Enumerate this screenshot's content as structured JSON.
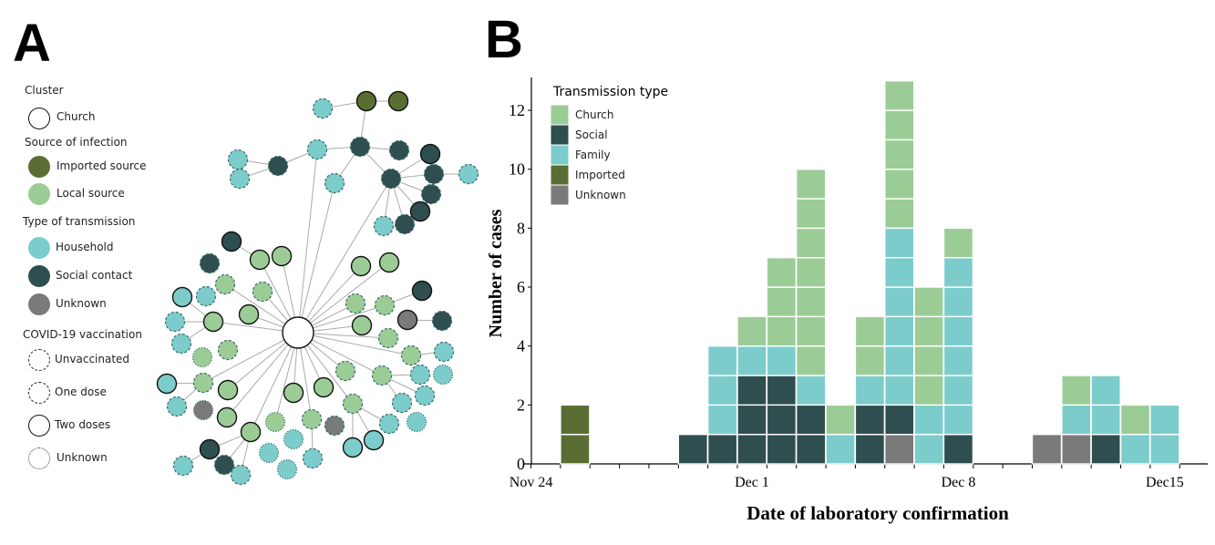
{
  "panels": {
    "a": "A",
    "b": "B"
  },
  "network_legend": {
    "cluster_heading": "Cluster",
    "cluster_items": [
      {
        "label": "Church",
        "fill": "#ffffff"
      }
    ],
    "source_heading": "Source of infection",
    "source_items": [
      {
        "label": "Imported source",
        "fill": "#5a6e34"
      },
      {
        "label": "Local source",
        "fill": "#9ccc96"
      }
    ],
    "transmission_heading": "Type of transmission",
    "transmission_items": [
      {
        "label": "Household",
        "fill": "#7ccccc"
      },
      {
        "label": "Social contact",
        "fill": "#2f4e4f"
      },
      {
        "label": "Unknown",
        "fill": "#7a7a7a"
      }
    ],
    "vaccination_heading": "COVID-19 vaccination",
    "vaccination_items": [
      {
        "label": "Unvaccinated",
        "border": "dashed"
      },
      {
        "label": "One dose",
        "border": "long-dashed"
      },
      {
        "label": "Two doses",
        "border": "solid"
      },
      {
        "label": "Unknown",
        "border": "dotted"
      }
    ]
  },
  "chart_data": {
    "type": "bar",
    "stacked": true,
    "xlabel": "Date of laboratory confirmation",
    "ylabel": "Number of cases",
    "ylim": [
      0,
      13
    ],
    "yticks": [
      0,
      2,
      4,
      6,
      8,
      10,
      12
    ],
    "xtick_labels": [
      {
        "label": "Nov 24",
        "date": "Nov 24"
      },
      {
        "label": "Dec 1",
        "date": "Dec 1"
      },
      {
        "label": "Dec 8",
        "date": "Dec 8"
      },
      {
        "label": "Dec15",
        "date": "Dec 15"
      }
    ],
    "xrange": [
      "Nov 24",
      "Dec 16"
    ],
    "legend": {
      "title": "Transmission type",
      "placement": "top-left"
    },
    "categories": [
      "Nov 25",
      "Nov 29",
      "Nov 30",
      "Dec 1",
      "Dec 2",
      "Dec 3",
      "Dec 4",
      "Dec 5",
      "Dec 6",
      "Dec 7",
      "Dec 8",
      "Dec 11",
      "Dec 12",
      "Dec 13",
      "Dec 14",
      "Dec 15"
    ],
    "series": [
      {
        "name": "Church",
        "color": "#9ccc96",
        "values": [
          0,
          0,
          0,
          1,
          3,
          7,
          1,
          2,
          5,
          4,
          1,
          0,
          1,
          0,
          1,
          0
        ]
      },
      {
        "name": "Social",
        "color": "#2f4e4f",
        "values": [
          0,
          1,
          1,
          3,
          3,
          2,
          0,
          2,
          1,
          0,
          1,
          0,
          0,
          1,
          0,
          0
        ]
      },
      {
        "name": "Family",
        "color": "#7ccccc",
        "values": [
          0,
          0,
          3,
          1,
          1,
          1,
          1,
          1,
          6,
          2,
          6,
          0,
          1,
          2,
          1,
          2
        ]
      },
      {
        "name": "Imported",
        "color": "#5a6e34",
        "values": [
          2,
          0,
          0,
          0,
          0,
          0,
          0,
          0,
          0,
          0,
          0,
          0,
          0,
          0,
          0,
          0
        ]
      },
      {
        "name": "Unknown",
        "color": "#7a7a7a",
        "values": [
          0,
          0,
          0,
          0,
          0,
          0,
          0,
          0,
          1,
          0,
          0,
          1,
          1,
          0,
          0,
          0
        ]
      }
    ],
    "stack_order_bottom_to_top": [
      "Unknown",
      "Imported",
      "Social",
      "Family",
      "Church"
    ]
  }
}
